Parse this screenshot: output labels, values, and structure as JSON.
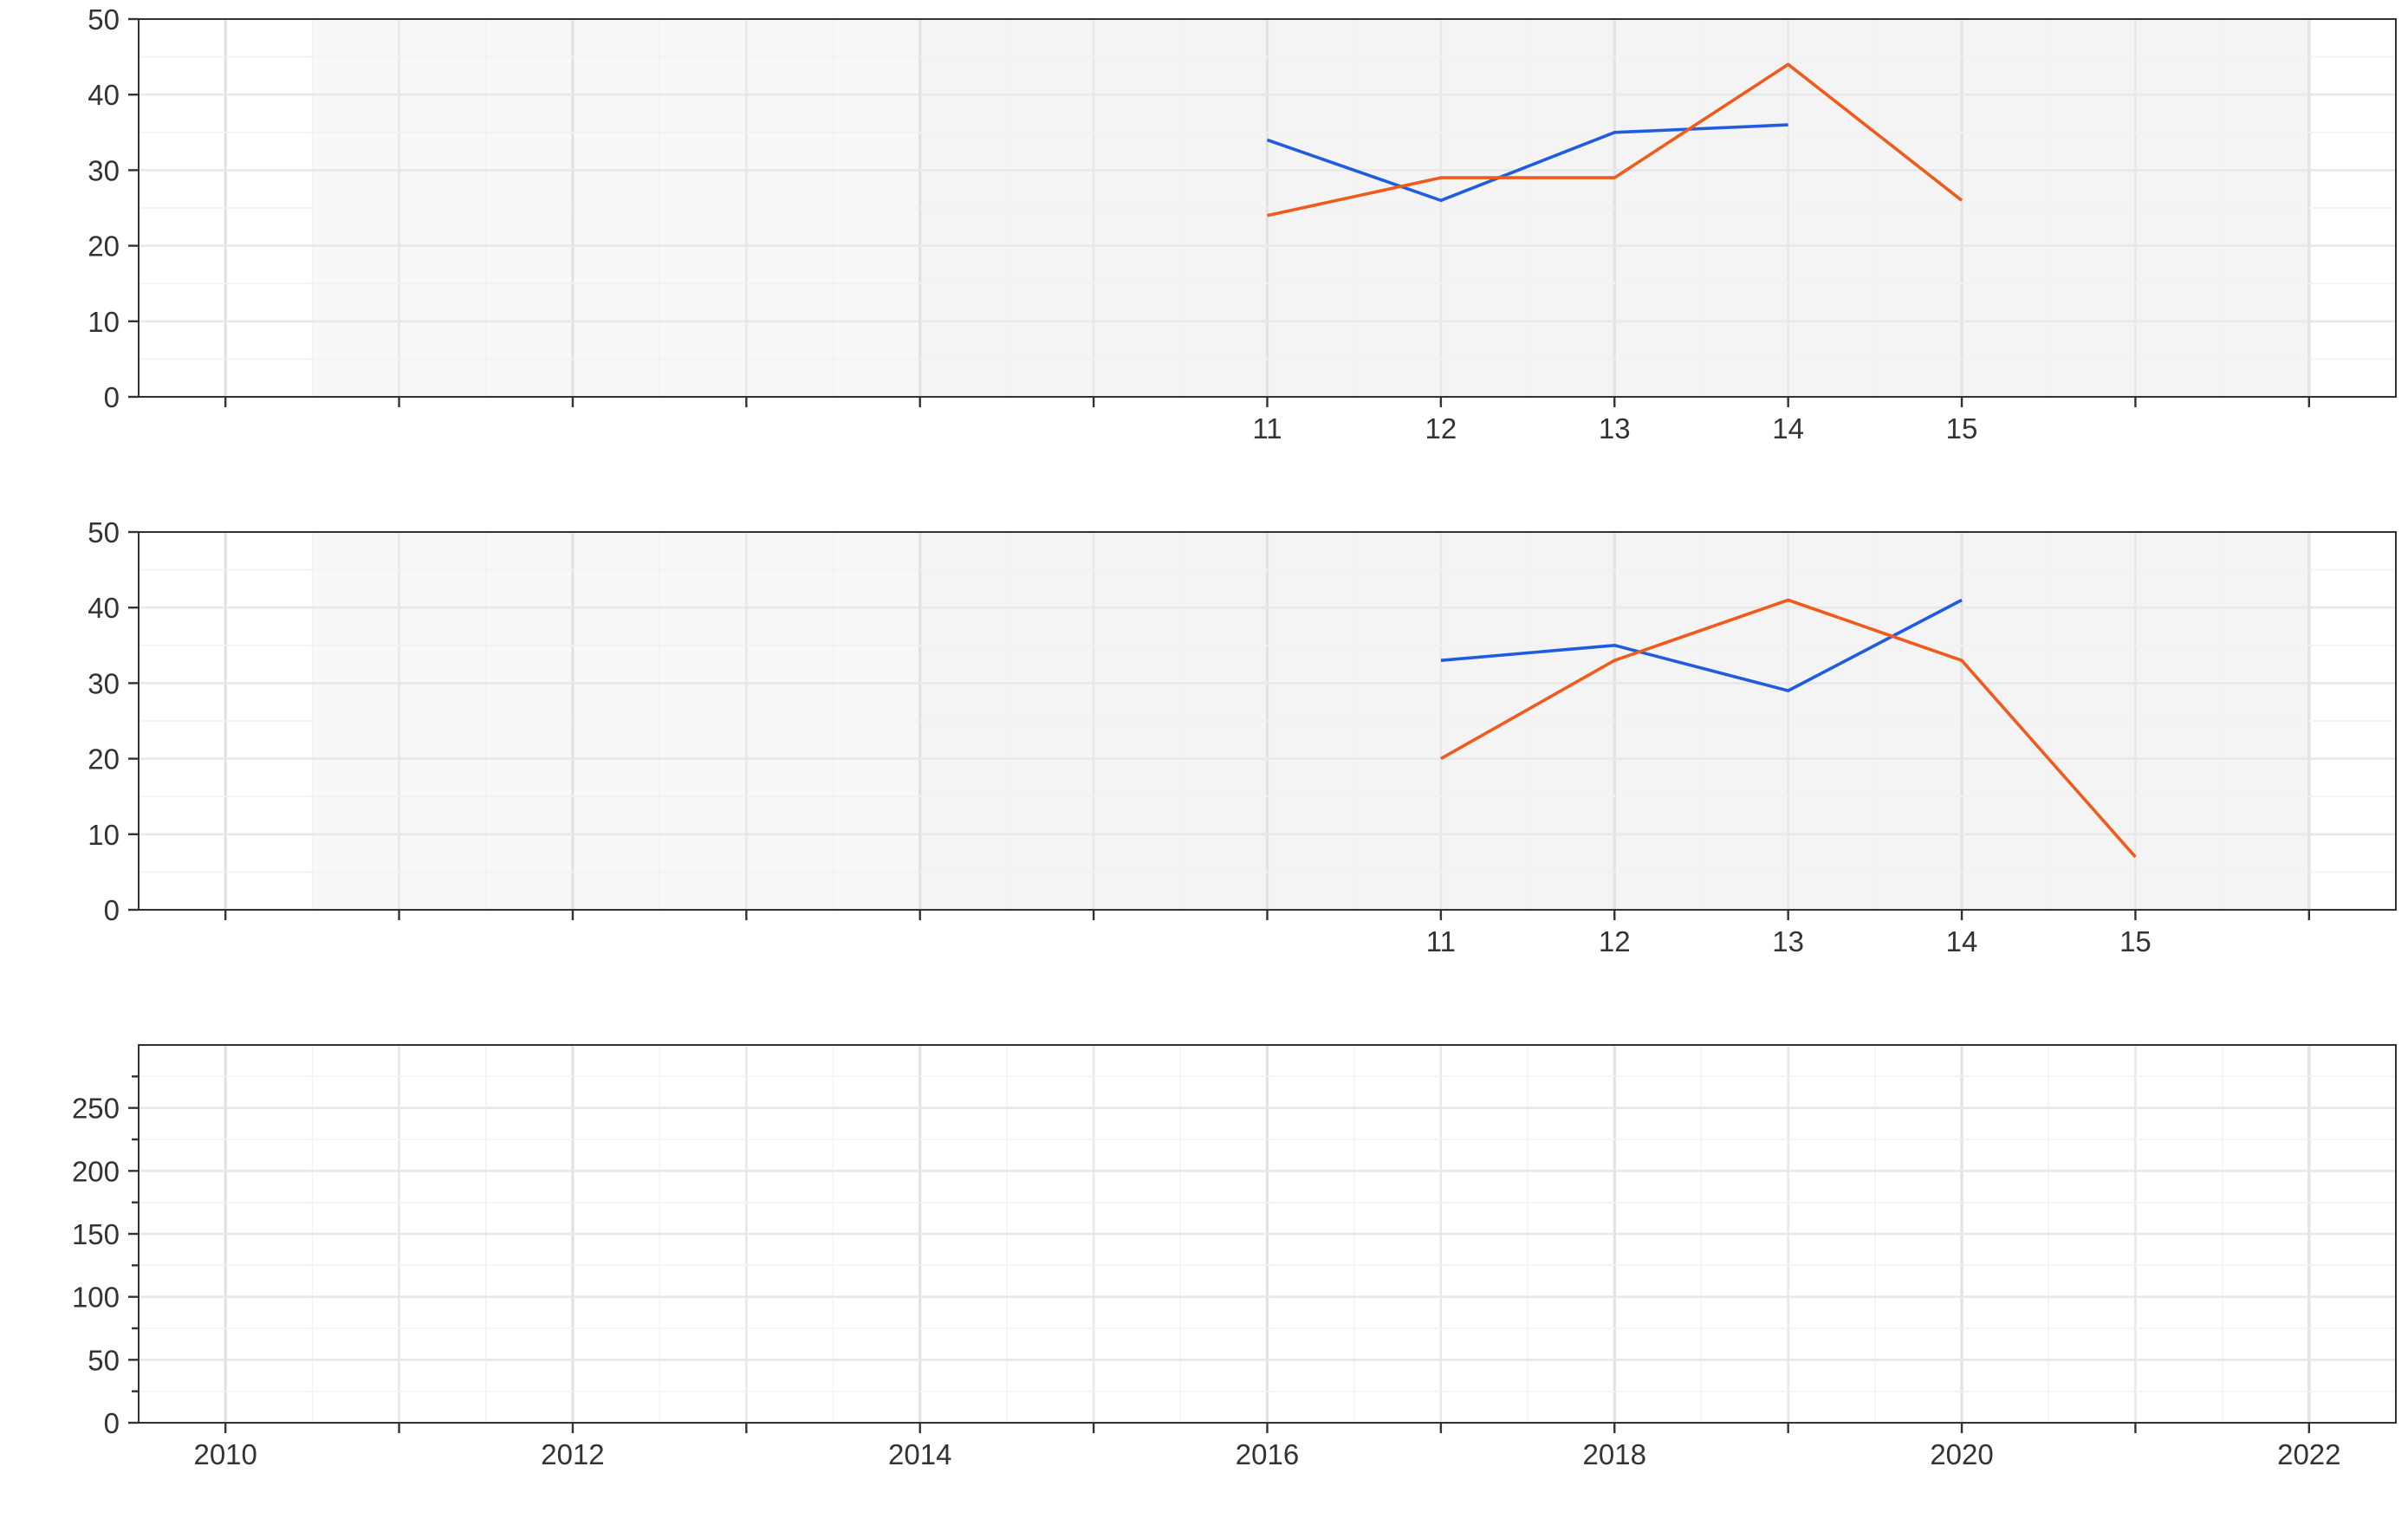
{
  "colors": {
    "series_blue": "#1f5ce0",
    "series_orange": "#f05a1a",
    "grid_major": "#e8e8e8",
    "grid_minor": "#f2f2f2",
    "panel_border": "#333333",
    "band_light": "#f8f8f8",
    "band_dark": "#f4f4f4"
  },
  "chart_data": [
    {
      "type": "line",
      "title": "",
      "xlabel": "",
      "ylabel": "",
      "xlim": [
        2009.5,
        2022.5
      ],
      "ylim": [
        0,
        50
      ],
      "y_ticks": [
        "0",
        "10",
        "20",
        "30",
        "40",
        "50"
      ],
      "x_tick_positions": [
        2010,
        2011,
        2012,
        2013,
        2014,
        2015,
        2016,
        2017,
        2018,
        2019,
        2020,
        2021,
        2022
      ],
      "x_tick_labels": [
        {
          "x": 2016,
          "label": "11"
        },
        {
          "x": 2017,
          "label": "12"
        },
        {
          "x": 2018,
          "label": "13"
        },
        {
          "x": 2019,
          "label": "14"
        },
        {
          "x": 2020,
          "label": "15"
        }
      ],
      "shaded_bands": [
        [
          2010.5,
          2014
        ],
        [
          2014,
          2022
        ]
      ],
      "grid": true,
      "series": [
        {
          "color_key": "series_blue",
          "x": [
            2016,
            2017,
            2018,
            2019
          ],
          "values": [
            34,
            26,
            35,
            36
          ]
        },
        {
          "color_key": "series_orange",
          "x": [
            2016,
            2017,
            2018,
            2019,
            2020
          ],
          "values": [
            24,
            29,
            29,
            44,
            26
          ]
        }
      ]
    },
    {
      "type": "line",
      "title": "",
      "xlabel": "",
      "ylabel": "",
      "xlim": [
        2009.5,
        2022.5
      ],
      "ylim": [
        0,
        50
      ],
      "y_ticks": [
        "0",
        "10",
        "20",
        "30",
        "40",
        "50"
      ],
      "x_tick_positions": [
        2010,
        2011,
        2012,
        2013,
        2014,
        2015,
        2016,
        2017,
        2018,
        2019,
        2020,
        2021,
        2022
      ],
      "x_tick_labels": [
        {
          "x": 2017,
          "label": "11"
        },
        {
          "x": 2018,
          "label": "12"
        },
        {
          "x": 2019,
          "label": "13"
        },
        {
          "x": 2020,
          "label": "14"
        },
        {
          "x": 2021,
          "label": "15"
        }
      ],
      "shaded_bands": [
        [
          2010.5,
          2014
        ],
        [
          2014,
          2022
        ]
      ],
      "grid": true,
      "series": [
        {
          "color_key": "series_blue",
          "x": [
            2017,
            2018,
            2019,
            2020
          ],
          "values": [
            33,
            35,
            29,
            41
          ]
        },
        {
          "color_key": "series_orange",
          "x": [
            2017,
            2018,
            2019,
            2020,
            2021
          ],
          "values": [
            20,
            33,
            41,
            33,
            7
          ]
        }
      ]
    },
    {
      "type": "line",
      "title": "",
      "xlabel": "",
      "ylabel": "",
      "xlim": [
        2009.5,
        2022.5
      ],
      "ylim": [
        0,
        300
      ],
      "y_ticks": [
        "0",
        "50",
        "100",
        "150",
        "200",
        "250"
      ],
      "x_tick_positions": [
        2010,
        2011,
        2012,
        2013,
        2014,
        2015,
        2016,
        2017,
        2018,
        2019,
        2020,
        2021,
        2022
      ],
      "x_tick_labels": [
        {
          "x": 2010,
          "label": "2010"
        },
        {
          "x": 2012,
          "label": "2012"
        },
        {
          "x": 2014,
          "label": "2014"
        },
        {
          "x": 2016,
          "label": "2016"
        },
        {
          "x": 2018,
          "label": "2018"
        },
        {
          "x": 2020,
          "label": "2020"
        },
        {
          "x": 2022,
          "label": "2022"
        }
      ],
      "shaded_bands": [],
      "grid": true,
      "series": []
    }
  ]
}
